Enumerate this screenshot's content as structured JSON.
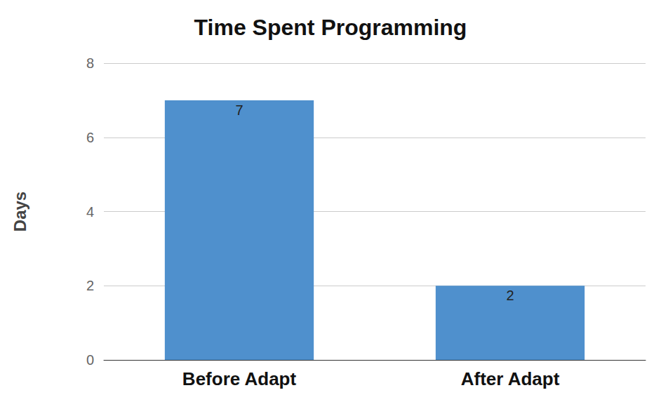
{
  "chart_data": {
    "type": "bar",
    "title": "Time Spent Programming",
    "ylabel": "Days",
    "categories": [
      "Before Adapt",
      "After Adapt"
    ],
    "values": [
      7,
      2
    ],
    "color": "#4f90cd",
    "ylim": [
      0,
      8
    ],
    "yticks": [
      0,
      2,
      4,
      6,
      8
    ],
    "grid": true,
    "data_labels": true
  }
}
